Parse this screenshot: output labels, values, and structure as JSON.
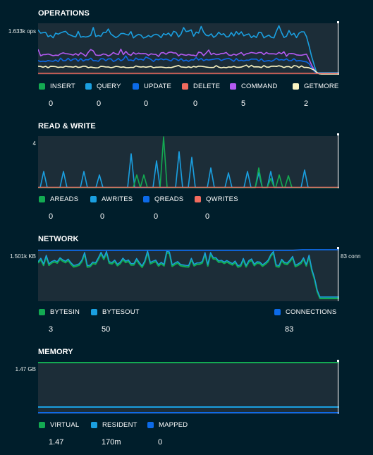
{
  "operations": {
    "title": "OPERATIONS",
    "y_max_label": "1.633k ops",
    "legend": [
      {
        "label": "INSERT",
        "value": "0",
        "color": "#13aa52"
      },
      {
        "label": "QUERY",
        "value": "0",
        "color": "#1a9fe0"
      },
      {
        "label": "UPDATE",
        "value": "0",
        "color": "#0c6ae8"
      },
      {
        "label": "DELETE",
        "value": "0",
        "color": "#f16b5e"
      },
      {
        "label": "COMMAND",
        "value": "5",
        "color": "#b45af2"
      },
      {
        "label": "GETMORE",
        "value": "2",
        "color": "#fbf4c2"
      }
    ]
  },
  "read_write": {
    "title": "READ & WRITE",
    "y_max_label": "4",
    "legend": [
      {
        "label": "AREADS",
        "value": "0",
        "color": "#13aa52"
      },
      {
        "label": "AWRITES",
        "value": "0",
        "color": "#1a9fe0"
      },
      {
        "label": "QREADS",
        "value": "0",
        "color": "#0c6ae8"
      },
      {
        "label": "QWRITES",
        "value": "0",
        "color": "#f16b5e"
      }
    ]
  },
  "network": {
    "title": "NETWORK",
    "y_max_label": "1.501k KB",
    "y2_max_label": "83 conn",
    "legend": [
      {
        "label": "BYTESIN",
        "value": "3",
        "color": "#13aa52"
      },
      {
        "label": "BYTESOUT",
        "value": "50",
        "color": "#1a9fe0"
      },
      {
        "label": "CONNECTIONS",
        "value": "83",
        "color": "#0c6ae8"
      }
    ]
  },
  "memory": {
    "title": "MEMORY",
    "y_max_label": "1.47 GB",
    "legend": [
      {
        "label": "VIRTUAL",
        "value": "1.47",
        "color": "#13aa52"
      },
      {
        "label": "RESIDENT",
        "value": "170m",
        "color": "#1a9fe0"
      },
      {
        "label": "MAPPED",
        "value": "0",
        "color": "#0c6ae8"
      }
    ]
  }
}
